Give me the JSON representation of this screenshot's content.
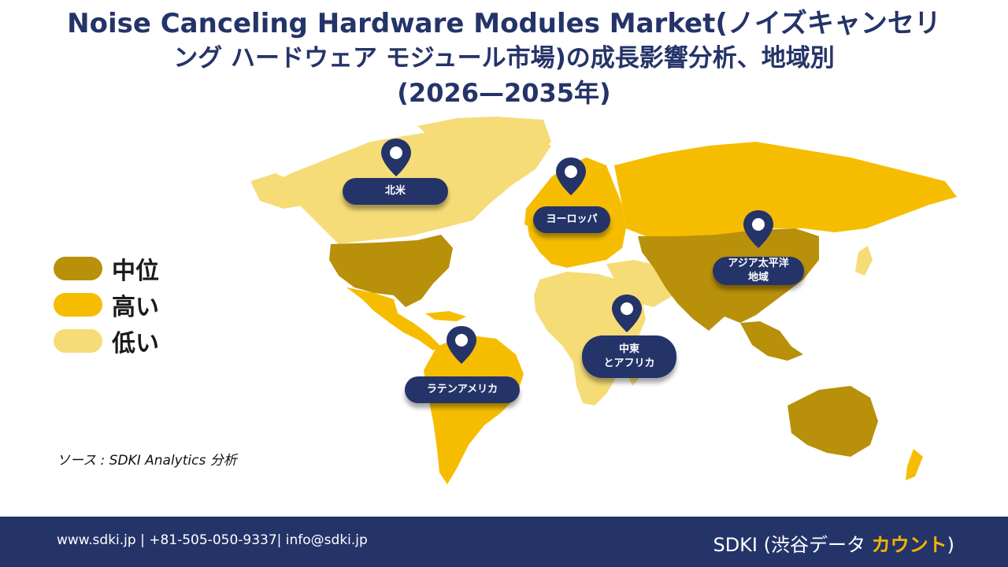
{
  "title": {
    "line1": "Noise Canceling Hardware Modules Market(ノイズキャンセリ",
    "line2": "ング ハードウェア モジュール市場)の成長影響分析、地域別",
    "line3": "(2026—2035年)"
  },
  "legend": [
    {
      "label": "中位",
      "color": "#b8900a"
    },
    {
      "label": "高い",
      "color": "#f6bd00"
    },
    {
      "label": "低い",
      "color": "#f5dc77"
    }
  ],
  "regions": {
    "north_america": "北米",
    "europe": "ヨーロッパ",
    "asia_pacific": "アジア太平洋\n地域",
    "middle_east_africa": "中東\nとアフリカ",
    "latin_america": "ラテンアメリカ"
  },
  "colors": {
    "navy": "#243469",
    "medium": "#b8900a",
    "high": "#f6bd00",
    "low": "#f5dc77"
  },
  "source": "ソース : SDKI Analytics 分析",
  "footer": {
    "contact": "www.sdki.jp | +81-505-050-9337| info@sdki.jp",
    "brand_prefix": "SDKI (渋谷データ ",
    "brand_accent": "カウント",
    "brand_suffix": ")"
  },
  "icons": [
    "map-pin-icon"
  ]
}
